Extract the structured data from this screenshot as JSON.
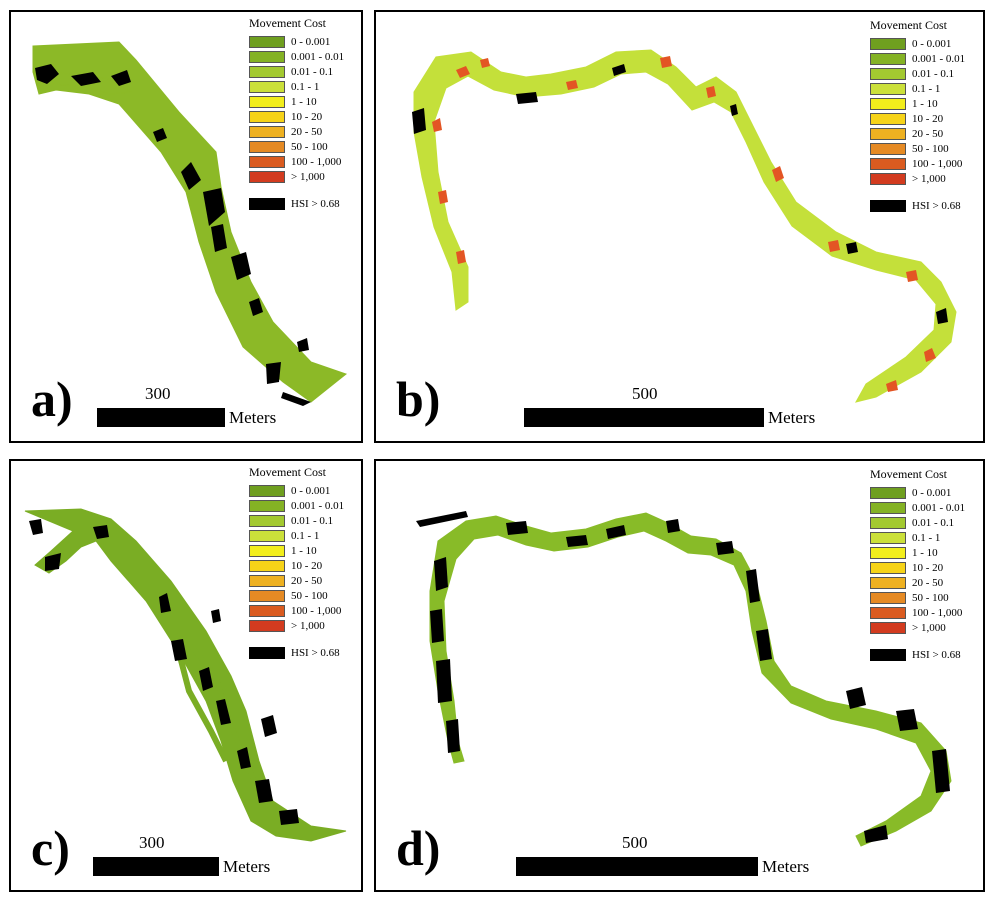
{
  "legend": {
    "title": "Movement Cost",
    "classes": [
      {
        "label": "0 - 0.001",
        "color": "#6f9f1f"
      },
      {
        "label": "0.001 - 0.01",
        "color": "#84b224"
      },
      {
        "label": "0.01 - 0.1",
        "color": "#a3c930"
      },
      {
        "label": "0.1 - 1",
        "color": "#cbe03a"
      },
      {
        "label": "1 - 10",
        "color": "#f2ee1c"
      },
      {
        "label": "10 - 20",
        "color": "#f6d318"
      },
      {
        "label": "20 - 50",
        "color": "#eeb121"
      },
      {
        "label": "50 - 100",
        "color": "#e58a24"
      },
      {
        "label": "100 - 1,000",
        "color": "#da5b20"
      },
      {
        "label": "> 1,000",
        "color": "#d23b1f"
      }
    ],
    "hsi_label": "HSI > 0.68"
  },
  "panels": {
    "a": {
      "label": "a)",
      "scale_value": "300",
      "scale_unit": "Meters",
      "channel_color": "#8cb927"
    },
    "b": {
      "label": "b)",
      "scale_value": "500",
      "scale_unit": "Meters",
      "channel_color": "#c4e03a",
      "hot_color": "#e55a23"
    },
    "c": {
      "label": "c)",
      "scale_value": "300",
      "scale_unit": "Meters",
      "channel_color": "#7aad24"
    },
    "d": {
      "label": "d)",
      "scale_value": "500",
      "scale_unit": "Meters",
      "channel_color": "#88bb28"
    }
  }
}
